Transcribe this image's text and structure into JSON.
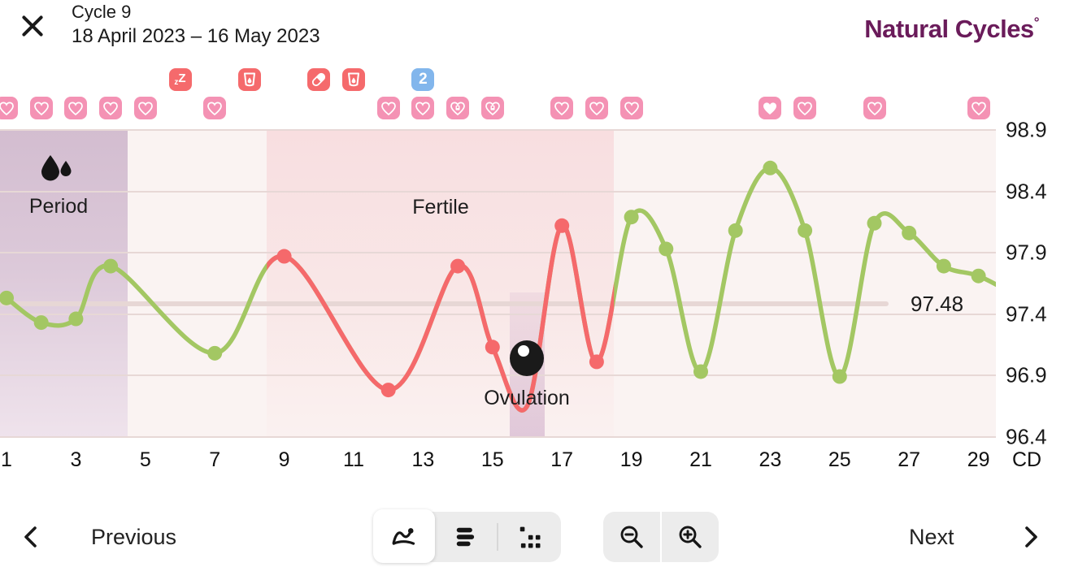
{
  "header": {
    "title": "Cycle 9",
    "date_range": "18 April 2023 – 16 May 2023",
    "logo_text": "Natural Cycles",
    "logo_degree": "°"
  },
  "chart_data": {
    "type": "line",
    "title": "Basal body temperature by cycle day",
    "x_axis": {
      "label": "CD",
      "ticks": [
        1,
        3,
        5,
        7,
        9,
        11,
        13,
        15,
        17,
        19,
        21,
        23,
        25,
        27,
        29
      ],
      "range": [
        1,
        29
      ]
    },
    "y_axis": {
      "unit": "°F",
      "ticks": [
        98.9,
        98.4,
        97.9,
        97.4,
        96.9,
        96.4
      ],
      "range": [
        96.4,
        98.9
      ]
    },
    "coverline": {
      "value": 97.48,
      "label": "97.48"
    },
    "regions": {
      "period": {
        "label": "Period",
        "start_day": 1,
        "end_day": 4.5
      },
      "fertile": {
        "label": "Fertile",
        "start_day": 8.5,
        "end_day": 18.5
      },
      "ovulation": {
        "label": "Ovulation",
        "day": 16
      }
    },
    "measurements": [
      {
        "day": 1,
        "temp": 97.53,
        "dot": true
      },
      {
        "day": 2,
        "temp": 97.33,
        "dot": true
      },
      {
        "day": 3,
        "temp": 97.36,
        "dot": true
      },
      {
        "day": 4,
        "temp": 97.79,
        "dot": true
      },
      {
        "day": 7,
        "temp": 97.08,
        "dot": true
      },
      {
        "day": 9,
        "temp": 97.87,
        "dot": true
      },
      {
        "day": 12,
        "temp": 96.78,
        "dot": true
      },
      {
        "day": 14,
        "temp": 97.79,
        "dot": true
      },
      {
        "day": 15,
        "temp": 97.13,
        "dot": true
      },
      {
        "day": 16,
        "temp": 96.65,
        "dot": false
      },
      {
        "day": 17,
        "temp": 98.12,
        "dot": true
      },
      {
        "day": 18,
        "temp": 97.01,
        "dot": true
      },
      {
        "day": 19,
        "temp": 98.19,
        "dot": true
      },
      {
        "day": 20,
        "temp": 97.93,
        "dot": true
      },
      {
        "day": 21,
        "temp": 96.93,
        "dot": true
      },
      {
        "day": 22,
        "temp": 98.08,
        "dot": true
      },
      {
        "day": 23,
        "temp": 98.59,
        "dot": true
      },
      {
        "day": 24,
        "temp": 98.08,
        "dot": true
      },
      {
        "day": 25,
        "temp": 96.89,
        "dot": true
      },
      {
        "day": 26,
        "temp": 98.14,
        "dot": true
      },
      {
        "day": 27,
        "temp": 98.06,
        "dot": true
      },
      {
        "day": 28,
        "temp": 97.79,
        "dot": true
      },
      {
        "day": 29,
        "temp": 97.71,
        "dot": true
      }
    ],
    "legend_position": "none",
    "grid": true
  },
  "badges": {
    "data_row": [
      {
        "day": 6,
        "type": "sleep"
      },
      {
        "day": 8,
        "type": "drink"
      },
      {
        "day": 10,
        "type": "pill"
      },
      {
        "day": 11,
        "type": "drink"
      },
      {
        "day": 13,
        "type": "count",
        "label": "2"
      }
    ],
    "sex_row": [
      {
        "day": 1,
        "style": "outline"
      },
      {
        "day": 2,
        "style": "outline"
      },
      {
        "day": 3,
        "style": "outline"
      },
      {
        "day": 4,
        "style": "outline"
      },
      {
        "day": 5,
        "style": "outline"
      },
      {
        "day": 7,
        "style": "outline"
      },
      {
        "day": 12,
        "style": "outline"
      },
      {
        "day": 13,
        "style": "outline"
      },
      {
        "day": 14,
        "style": "protected"
      },
      {
        "day": 15,
        "style": "protected"
      },
      {
        "day": 17,
        "style": "outline"
      },
      {
        "day": 18,
        "style": "outline"
      },
      {
        "day": 19,
        "style": "outline"
      },
      {
        "day": 23,
        "style": "filled"
      },
      {
        "day": 24,
        "style": "outline"
      },
      {
        "day": 26,
        "style": "outline"
      },
      {
        "day": 29,
        "style": "outline"
      }
    ]
  },
  "toolbar": {
    "previous_label": "Previous",
    "next_label": "Next"
  },
  "colors": {
    "line_infertile": "#a3c763",
    "line_fertile": "#f5696b",
    "heart_badge": "#f492b4",
    "data_badge": "#f56a6c",
    "count_badge": "#82b6ec",
    "logo": "#6a1b5a",
    "coverline": "#e7d7d5"
  }
}
